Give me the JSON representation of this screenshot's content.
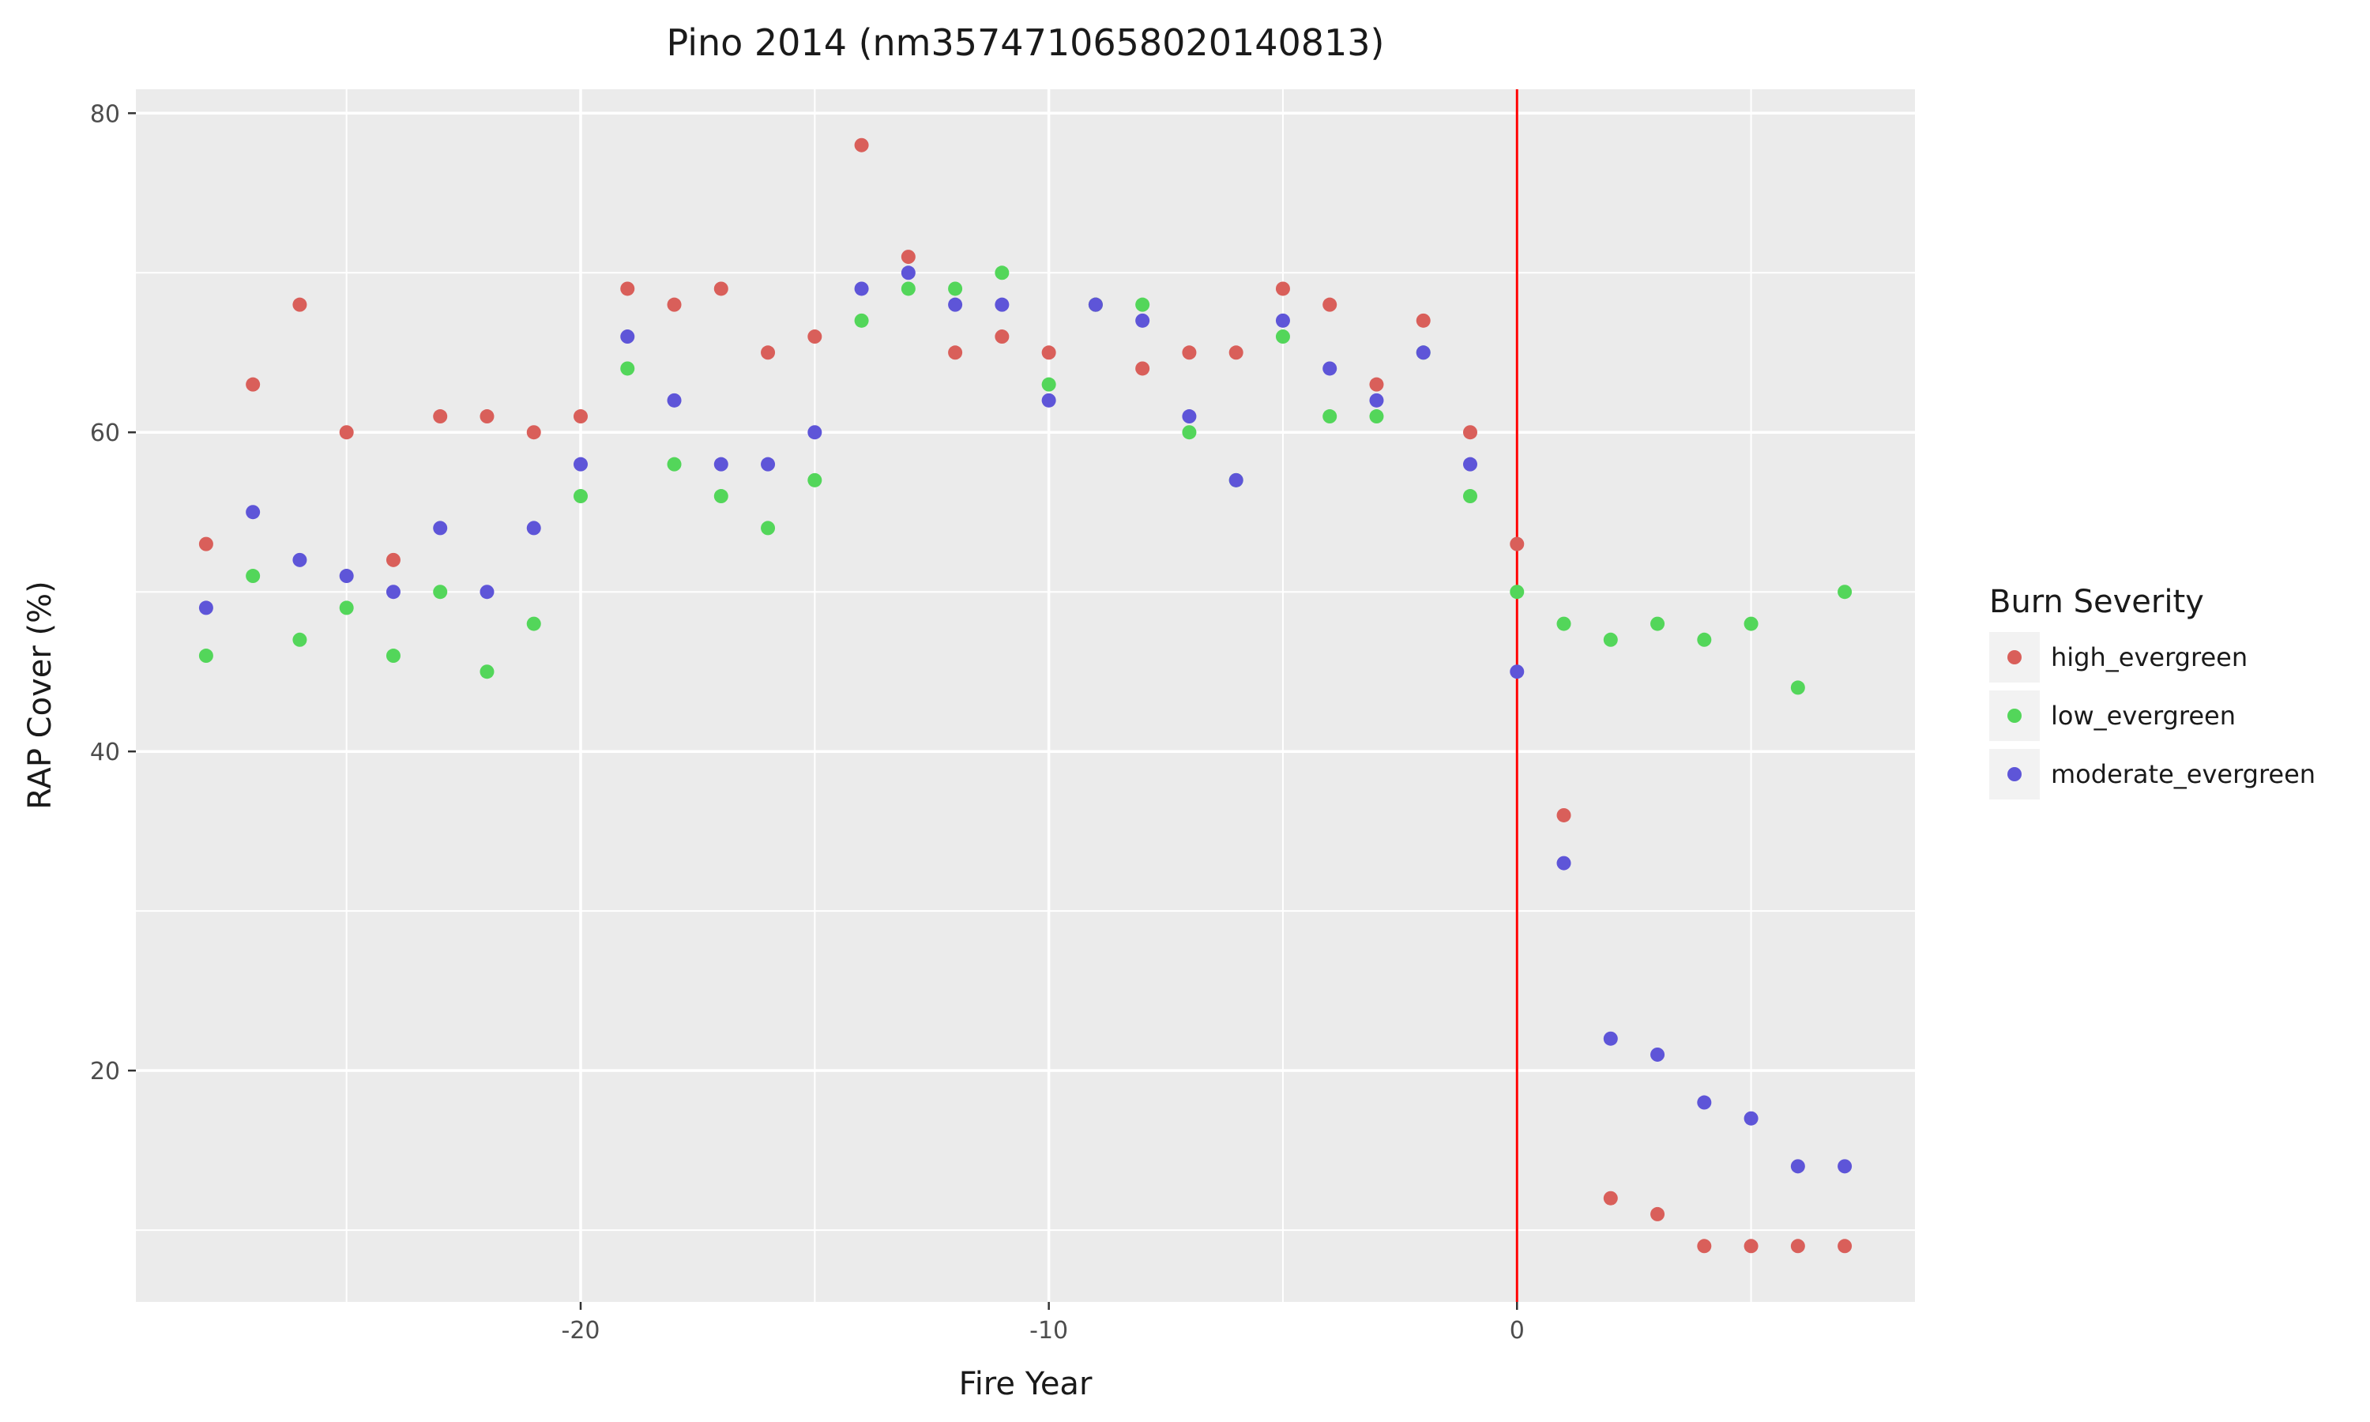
{
  "chart_data": {
    "type": "scatter",
    "title": "Pino 2014 (nm3574710658020140813)",
    "xlabel": "Fire Year",
    "ylabel": "RAP Cover (%)",
    "xlim": [
      -29.5,
      8.5
    ],
    "ylim": [
      5.5,
      81.5
    ],
    "xticks": [
      -20,
      -10,
      0
    ],
    "yticks": [
      20,
      40,
      60,
      80
    ],
    "grid": true,
    "legend": {
      "title": "Burn Severity",
      "placement": "right"
    },
    "vline": {
      "x": 0,
      "color": "#ff0000"
    },
    "series": [
      {
        "name": "high_evergreen",
        "color": "#d95f5a",
        "x": [
          -28,
          -27,
          -26,
          -25,
          -24,
          -23,
          -22,
          -21,
          -20,
          -19,
          -18,
          -17,
          -16,
          -15,
          -14,
          -13,
          -12,
          -11,
          -10,
          -9,
          -8,
          -7,
          -6,
          -5,
          -4,
          -3,
          -2,
          -1,
          0,
          1,
          2,
          3,
          4,
          5,
          6,
          7
        ],
        "y": [
          53,
          63,
          68,
          60,
          52,
          61,
          61,
          60,
          61,
          69,
          68,
          69,
          65,
          66,
          78,
          71,
          65,
          66,
          65,
          68,
          64,
          65,
          65,
          69,
          68,
          63,
          67,
          60,
          53,
          36,
          12,
          11,
          9,
          9,
          9,
          9
        ]
      },
      {
        "name": "low_evergreen",
        "color": "#53d65a",
        "x": [
          -28,
          -27,
          -26,
          -25,
          -24,
          -23,
          -22,
          -21,
          -20,
          -19,
          -18,
          -17,
          -16,
          -15,
          -14,
          -13,
          -12,
          -11,
          -10,
          -9,
          -8,
          -7,
          -6,
          -5,
          -4,
          -3,
          -2,
          -1,
          0,
          1,
          2,
          3,
          4,
          5,
          6,
          7
        ],
        "y": [
          46,
          51,
          47,
          49,
          46,
          50,
          45,
          48,
          56,
          64,
          58,
          56,
          54,
          57,
          67,
          69,
          69,
          70,
          63,
          68,
          68,
          60,
          57,
          66,
          61,
          61,
          65,
          56,
          50,
          48,
          47,
          48,
          47,
          48,
          44,
          50
        ]
      },
      {
        "name": "moderate_evergreen",
        "color": "#5e55d8",
        "x": [
          -28,
          -27,
          -26,
          -25,
          -24,
          -23,
          -22,
          -21,
          -20,
          -19,
          -18,
          -17,
          -16,
          -15,
          -14,
          -13,
          -12,
          -11,
          -10,
          -9,
          -8,
          -7,
          -6,
          -5,
          -4,
          -3,
          -2,
          -1,
          0,
          1,
          2,
          3,
          4,
          5,
          6,
          7
        ],
        "y": [
          49,
          55,
          52,
          51,
          50,
          54,
          50,
          54,
          58,
          66,
          62,
          58,
          58,
          60,
          69,
          70,
          68,
          68,
          62,
          68,
          67,
          61,
          57,
          67,
          64,
          62,
          65,
          58,
          45,
          33,
          22,
          21,
          18,
          17,
          14,
          14
        ]
      }
    ]
  }
}
